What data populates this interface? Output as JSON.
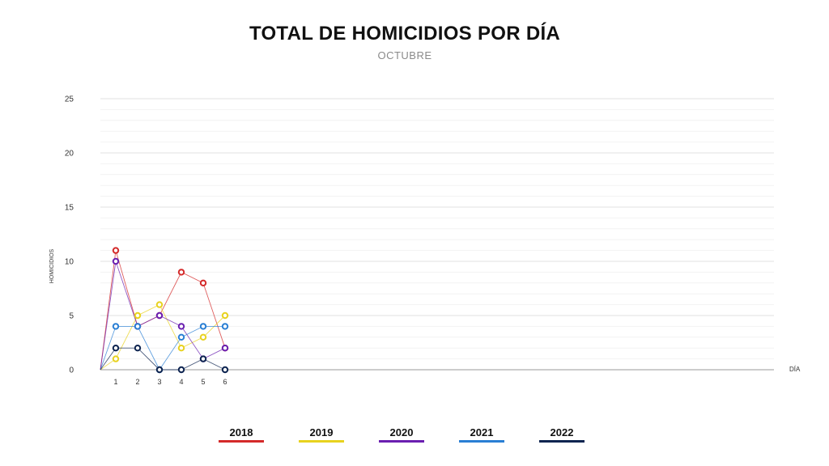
{
  "chart_data": {
    "type": "line",
    "title": "TOTAL DE HOMICIDIOS POR DÍA",
    "subtitle": "OCTUBRE",
    "xlabel": "DÍA",
    "ylabel": "HOMICIDIOS",
    "x": [
      0,
      1,
      2,
      3,
      4,
      5,
      6
    ],
    "x_tick_labels": [
      "",
      "1",
      "2",
      "3",
      "4",
      "5",
      "6"
    ],
    "xlim": [
      0,
      31
    ],
    "ylim": [
      0,
      25
    ],
    "y_ticks": [
      0,
      5,
      10,
      15,
      20,
      25
    ],
    "grid": true,
    "legend_position": "bottom",
    "series": [
      {
        "name": "2018",
        "color": "#d42a2a",
        "values": [
          0,
          11,
          4,
          5,
          9,
          8,
          2
        ]
      },
      {
        "name": "2019",
        "color": "#e8d21f",
        "values": [
          0,
          1,
          5,
          6,
          2,
          3,
          5
        ]
      },
      {
        "name": "2020",
        "color": "#6a1fb0",
        "values": [
          0,
          10,
          4,
          5,
          4,
          1,
          2
        ]
      },
      {
        "name": "2021",
        "color": "#2a7fd4",
        "values": [
          0,
          4,
          4,
          0,
          3,
          4,
          4
        ]
      },
      {
        "name": "2022",
        "color": "#0d2450",
        "values": [
          0,
          2,
          2,
          0,
          0,
          1,
          0
        ]
      }
    ]
  }
}
